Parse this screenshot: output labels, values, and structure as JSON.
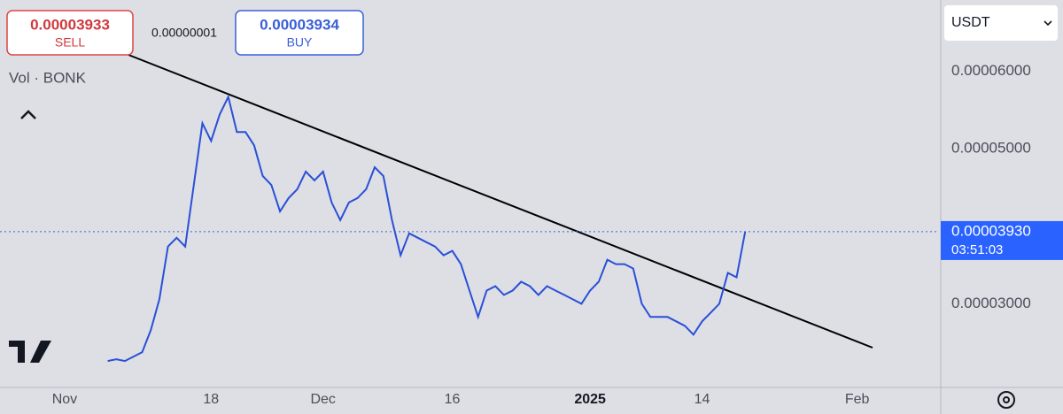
{
  "chart_data": {
    "type": "line",
    "sell": {
      "price": "0.00003933",
      "label": "SELL"
    },
    "buy": {
      "price": "0.00003934",
      "label": "BUY"
    },
    "spread": "0.00000001",
    "legend_text": "Vol · BONK",
    "currency": "USDT",
    "last_price": {
      "value": 3.93e-05,
      "label": "0.00003930"
    },
    "countdown": "03:51:03",
    "categories": [
      null,
      null,
      null,
      null,
      null,
      null,
      null,
      "Nov",
      null,
      null,
      null,
      null,
      null,
      null,
      null,
      null,
      null,
      null,
      null,
      null,
      null,
      null,
      null,
      null,
      "18",
      null,
      null,
      null,
      null,
      null,
      null,
      null,
      null,
      null,
      null,
      null,
      null,
      "Dec",
      null,
      null,
      null,
      null,
      null,
      null,
      null,
      null,
      null,
      null,
      null,
      null,
      null,
      null,
      "16",
      null,
      null,
      null,
      null,
      null,
      null,
      null,
      null,
      null,
      null,
      null,
      null,
      null,
      null,
      null,
      "2025",
      null,
      null,
      null,
      null,
      null,
      null,
      null,
      null,
      null,
      null,
      null,
      null,
      "14",
      null,
      null,
      null,
      null,
      null,
      null,
      null,
      null,
      null,
      null,
      null,
      null,
      null,
      null,
      null,
      null,
      null,
      "Feb",
      null,
      null,
      null,
      null,
      null,
      null,
      null,
      null,
      null
    ],
    "series": [
      {
        "color": "#2a4fd8",
        "values": [
          null,
          null,
          null,
          null,
          null,
          null,
          null,
          null,
          null,
          null,
          null,
          null,
          2.261e-05,
          2.284e-05,
          2.261e-05,
          2.318e-05,
          2.375e-05,
          2.659e-05,
          3.057e-05,
          3.739e-05,
          3.852e-05,
          3.739e-05,
          4.534e-05,
          5.33e-05,
          5.102e-05,
          5.443e-05,
          5.67e-05,
          5.216e-05,
          5.216e-05,
          5.045e-05,
          4.648e-05,
          4.534e-05,
          4.193e-05,
          4.364e-05,
          4.477e-05,
          4.705e-05,
          4.591e-05,
          4.705e-05,
          4.307e-05,
          4.08e-05,
          4.307e-05,
          4.364e-05,
          4.477e-05,
          4.761e-05,
          4.648e-05,
          4.08e-05,
          3.625e-05,
          3.909e-05,
          3.852e-05,
          3.795e-05,
          3.739e-05,
          3.625e-05,
          3.682e-05,
          3.511e-05,
          3.17e-05,
          2.83e-05,
          3.17e-05,
          3.227e-05,
          3.114e-05,
          3.17e-05,
          3.284e-05,
          3.227e-05,
          3.114e-05,
          3.227e-05,
          3.17e-05,
          3.114e-05,
          3.057e-05,
          3e-05,
          3.17e-05,
          3.284e-05,
          3.568e-05,
          3.511e-05,
          3.511e-05,
          3.455e-05,
          3e-05,
          2.83e-05,
          2.83e-05,
          2.83e-05,
          2.773e-05,
          2.716e-05,
          2.602e-05,
          2.773e-05,
          2.886e-05,
          3e-05,
          3.398e-05,
          3.341e-05,
          3.93e-05,
          null,
          null,
          null,
          null,
          null,
          null,
          null,
          null,
          null,
          null,
          null,
          null,
          null,
          null,
          null,
          null,
          null,
          null,
          null,
          null,
          null,
          null
        ]
      }
    ],
    "ylim": [
      1.92e-05,
      6.92e-05
    ],
    "yticks": [
      {
        "value": 3e-05,
        "label": "0.00003000"
      },
      {
        "value": 5e-05,
        "label": "0.00005000"
      },
      {
        "value": 6e-05,
        "label": "0.00006000"
      }
    ]
  }
}
